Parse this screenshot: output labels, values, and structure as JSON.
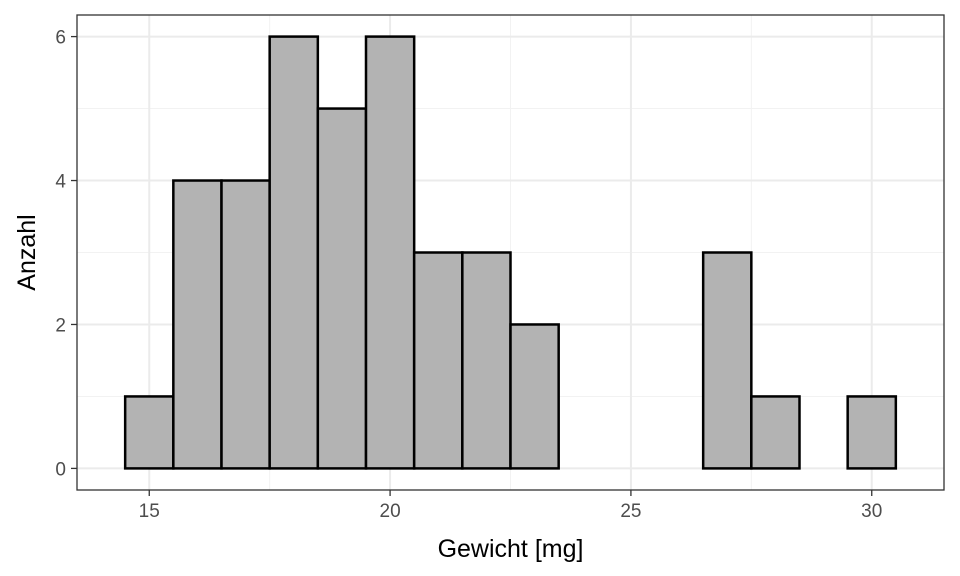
{
  "chart_data": {
    "type": "bar",
    "subtype": "histogram",
    "title": "",
    "xlabel": "Gewicht [mg]",
    "ylabel": "Anzahl",
    "bin_width": 1,
    "bins": [
      {
        "x0": 14.5,
        "x1": 15.5,
        "count": 1
      },
      {
        "x0": 15.5,
        "x1": 16.5,
        "count": 4
      },
      {
        "x0": 16.5,
        "x1": 17.5,
        "count": 4
      },
      {
        "x0": 17.5,
        "x1": 18.5,
        "count": 6
      },
      {
        "x0": 18.5,
        "x1": 19.5,
        "count": 5
      },
      {
        "x0": 19.5,
        "x1": 20.5,
        "count": 6
      },
      {
        "x0": 20.5,
        "x1": 21.5,
        "count": 3
      },
      {
        "x0": 21.5,
        "x1": 22.5,
        "count": 3
      },
      {
        "x0": 22.5,
        "x1": 23.5,
        "count": 2
      },
      {
        "x0": 23.5,
        "x1": 24.5,
        "count": 0
      },
      {
        "x0": 24.5,
        "x1": 25.5,
        "count": 0
      },
      {
        "x0": 25.5,
        "x1": 26.5,
        "count": 0
      },
      {
        "x0": 26.5,
        "x1": 27.5,
        "count": 3
      },
      {
        "x0": 27.5,
        "x1": 28.5,
        "count": 1
      },
      {
        "x0": 28.5,
        "x1": 29.5,
        "count": 0
      },
      {
        "x0": 29.5,
        "x1": 30.5,
        "count": 1
      }
    ],
    "xlim": [
      13.5,
      31.5
    ],
    "ylim": [
      -0.3,
      6.3
    ],
    "xticks": [
      15,
      20,
      25,
      30
    ],
    "yticks": [
      0,
      2,
      4,
      6
    ],
    "grid": true,
    "bar_fill": "#b3b3b3",
    "bar_stroke": "#000000",
    "legend": "none"
  }
}
